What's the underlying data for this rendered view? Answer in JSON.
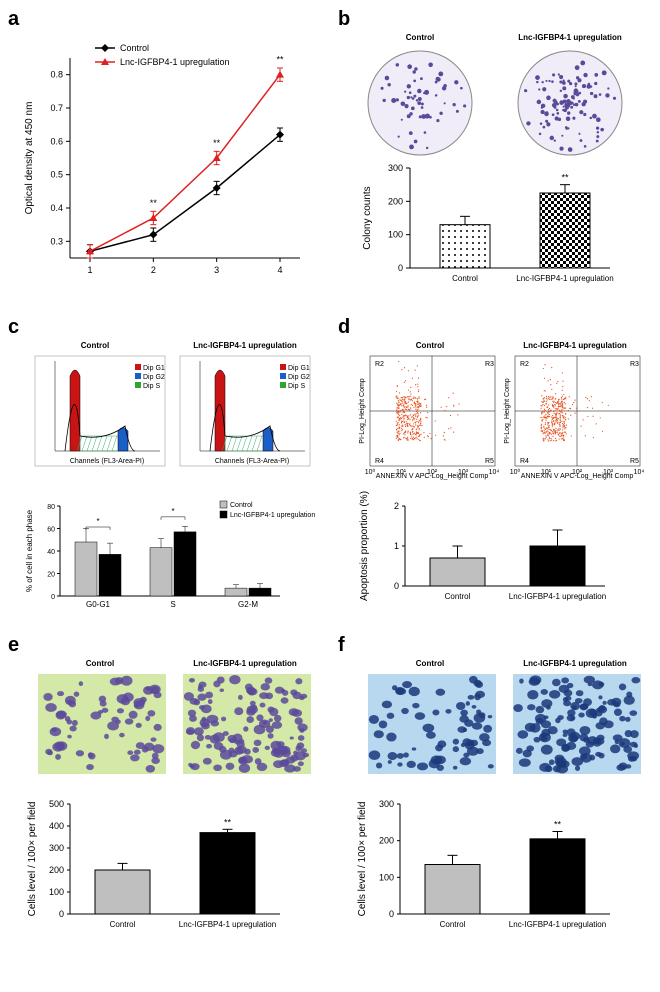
{
  "panel_a": {
    "label": "a",
    "type": "line",
    "ylabel": "Optical density at 450 nm",
    "xticks": [
      "1",
      "2",
      "3",
      "4"
    ],
    "yticks": [
      "0.3",
      "0.4",
      "0.5",
      "0.6",
      "0.7",
      "0.8"
    ],
    "ylim": [
      0.25,
      0.85
    ],
    "series": [
      {
        "name": "Control",
        "color": "#000000",
        "marker": "diamond",
        "values": [
          0.27,
          0.32,
          0.46,
          0.62
        ]
      },
      {
        "name": "Lnc-IGFBP4-1 upregulation",
        "color": "#e02020",
        "marker": "triangle",
        "values": [
          0.27,
          0.37,
          0.55,
          0.8
        ]
      }
    ],
    "error": 0.02,
    "sig": "**"
  },
  "panel_b": {
    "label": "b",
    "type": "colony",
    "headers": [
      "Control",
      "Lnc-IGFBP4-1 upregulation"
    ],
    "ylabel": "Colony counts",
    "ylim": [
      0,
      300
    ],
    "yticks": [
      "0",
      "100",
      "200",
      "300"
    ],
    "bars": [
      {
        "label": "Control",
        "value": 130,
        "fill": "dots",
        "err": 25
      },
      {
        "label": "Lnc-IGFBP4-1 upregulation",
        "value": 225,
        "fill": "checker",
        "err": 25
      }
    ],
    "sig": "**",
    "dot_color": "#5a4a9a"
  },
  "panel_c": {
    "label": "c",
    "type": "cellcycle",
    "headers": [
      "Control",
      "Lnc-IGFBP4-1 upregulation"
    ],
    "ylabel": "% of cell in each phase",
    "ylim": [
      0,
      80
    ],
    "yticks": [
      "0",
      "20",
      "40",
      "60",
      "80"
    ],
    "groups": [
      "G0-G1",
      "S",
      "G2-M"
    ],
    "legend": [
      "Control",
      "Lnc-IGFBP4-1 upregulation"
    ],
    "bars": {
      "G0-G1": {
        "Control": 48,
        "Up": 37,
        "sig": "*",
        "errC": 12,
        "errU": 10
      },
      "S": {
        "Control": 43,
        "Up": 57,
        "sig": "*",
        "errC": 8,
        "errU": 5
      },
      "G2-M": {
        "Control": 7,
        "Up": 7,
        "errC": 3,
        "errU": 4
      }
    },
    "colors": {
      "Control": "#bfbfbf",
      "Up": "#000000"
    },
    "flow_xlabel": "Channels (FL3-Area-PI)",
    "flow_legend": [
      "Dip G1",
      "Dip G2",
      "Dip S"
    ],
    "flow_colors": [
      "#c81414",
      "#1c5ec8",
      "#2da82d"
    ]
  },
  "panel_d": {
    "label": "d",
    "type": "apoptosis",
    "headers": [
      "Control",
      "Lnc-IGFBP4-1 upregulation"
    ],
    "ylabel": "Apoptosis proportion (%)",
    "ylim": [
      0,
      2
    ],
    "yticks": [
      "0",
      "1",
      "2"
    ],
    "bars": [
      {
        "label": "Control",
        "value": 0.7,
        "fill": "#bfbfbf",
        "err": 0.3
      },
      {
        "label": "Lnc-IGFBP4-1 upregulation",
        "value": 1.0,
        "fill": "#000000",
        "err": 0.4
      }
    ],
    "scatter_xlabel": "ANNEXIN V APC-Log_Height Comp",
    "scatter_ylabel": "PI-Log_Height Comp",
    "quads": [
      "R2",
      "R3",
      "R4",
      "R5"
    ],
    "dot_color": "#e85020"
  },
  "panel_e": {
    "label": "e",
    "type": "migration",
    "headers": [
      "Control",
      "Lnc-IGFBP4-1 upregulation"
    ],
    "ylabel": "Cells level / 100× per field",
    "ylim": [
      0,
      500
    ],
    "yticks": [
      "0",
      "100",
      "200",
      "300",
      "400",
      "500"
    ],
    "bars": [
      {
        "label": "Control",
        "value": 200,
        "fill": "#bfbfbf",
        "err": 30
      },
      {
        "label": "Lnc-IGFBP4-1 upregulation",
        "value": 370,
        "fill": "#000000",
        "err": 15
      }
    ],
    "sig": "**",
    "bg": "#d4e8a8",
    "cell": "#5a4a9a"
  },
  "panel_f": {
    "label": "f",
    "type": "invasion",
    "headers": [
      "Control",
      "Lnc-IGFBP4-1 upregulation"
    ],
    "ylabel": "Cells level / 100× per field",
    "ylim": [
      0,
      300
    ],
    "yticks": [
      "0",
      "100",
      "200",
      "300"
    ],
    "bars": [
      {
        "label": "Control",
        "value": 135,
        "fill": "#bfbfbf",
        "err": 25
      },
      {
        "label": "Lnc-IGFBP4-1 upregulation",
        "value": 205,
        "fill": "#000000",
        "err": 20
      }
    ],
    "sig": "**",
    "bg": "#b8d8f0",
    "cell": "#1a3a7a"
  }
}
